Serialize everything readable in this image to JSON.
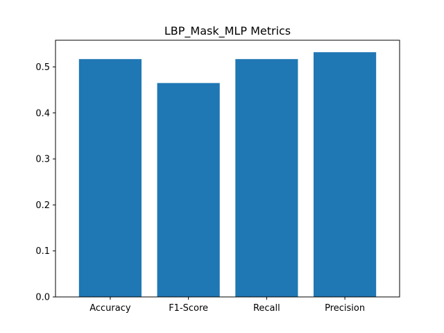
{
  "chart_data": {
    "type": "bar",
    "title": "LBP_Mask_MLP Metrics",
    "xlabel": "",
    "ylabel": "",
    "categories": [
      "Accuracy",
      "F1-Score",
      "Recall",
      "Precision"
    ],
    "values": [
      0.517,
      0.465,
      0.517,
      0.532
    ],
    "ylim": [
      0,
      0.558
    ],
    "yticks": [
      0.0,
      0.1,
      0.2,
      0.3,
      0.4,
      0.5
    ],
    "ytick_labels": [
      "0.0",
      "0.1",
      "0.2",
      "0.3",
      "0.4",
      "0.5"
    ],
    "grid": false,
    "legend": "none",
    "colors": {
      "bar": "#1f77b4",
      "axis": "#000000",
      "background": "#ffffff"
    }
  }
}
